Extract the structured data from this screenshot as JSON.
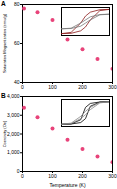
{
  "chart_data": [
    {
      "type": "scatter",
      "title": "A",
      "y_label": "Saturation Magnetization (emu/g)",
      "x": [
        5,
        50,
        100,
        150,
        200,
        250,
        300
      ],
      "values": [
        78,
        76,
        72,
        62,
        57,
        52,
        47
      ],
      "color": "#e8437a",
      "marker": "circle",
      "xlim": [
        0,
        300
      ],
      "xticks": [
        0,
        100,
        200,
        300
      ],
      "ylim": [
        40,
        80
      ],
      "yticks": [
        40,
        60,
        80
      ],
      "inset": {
        "type": "line",
        "tick_labels": false,
        "xlim": [
          -1,
          1
        ],
        "ylim": [
          -90,
          90
        ],
        "x": [
          -1,
          -0.6,
          -0.2,
          0,
          0.2,
          0.6,
          1,
          0.6,
          0.2,
          0,
          -0.2,
          -0.6,
          -1
        ],
        "series": [
          {
            "color": "#8b1a1a",
            "values": [
              -78,
              -76,
              -60,
              -35,
              10,
              70,
              78,
              76,
              60,
              35,
              -10,
              -70,
              -78
            ]
          },
          {
            "color": "#777777",
            "values": [
              -47,
              -45,
              -30,
              -10,
              10,
              43,
              47,
              45,
              30,
              10,
              -10,
              -43,
              -47
            ]
          }
        ]
      }
    },
    {
      "type": "scatter",
      "title": "B",
      "x_label": "Temperature (K)",
      "y_label": "Coercivity (Oe)",
      "x": [
        5,
        50,
        100,
        150,
        200,
        250,
        300
      ],
      "values": [
        3400,
        2900,
        2300,
        1700,
        1200,
        800,
        500
      ],
      "color": "#e8437a",
      "marker": "circle",
      "xlim": [
        0,
        300
      ],
      "xticks": [
        0,
        100,
        200,
        300
      ],
      "ylim": [
        0,
        4000
      ],
      "yticks": [
        0,
        1000,
        2000,
        3000,
        4000
      ],
      "inset": {
        "type": "line",
        "tick_labels": false,
        "xlim": [
          -1,
          1
        ],
        "ylim": [
          -1.2,
          1.2
        ],
        "x": [
          -1,
          -0.6,
          -0.2,
          0,
          0.2,
          0.6,
          1,
          0.6,
          0.2,
          0,
          -0.2,
          -0.6,
          -1
        ],
        "series": [
          {
            "color": "#000000",
            "values": [
              -1,
              -0.98,
              -0.85,
              -0.5,
              0.6,
              0.97,
              1,
              0.98,
              0.85,
              0.5,
              -0.6,
              -0.97,
              -1
            ]
          },
          {
            "color": "#888888",
            "values": [
              -1,
              -0.95,
              -0.5,
              -0.15,
              0.3,
              0.9,
              1,
              0.95,
              0.5,
              0.15,
              -0.3,
              -0.9,
              -1
            ]
          }
        ]
      }
    }
  ]
}
